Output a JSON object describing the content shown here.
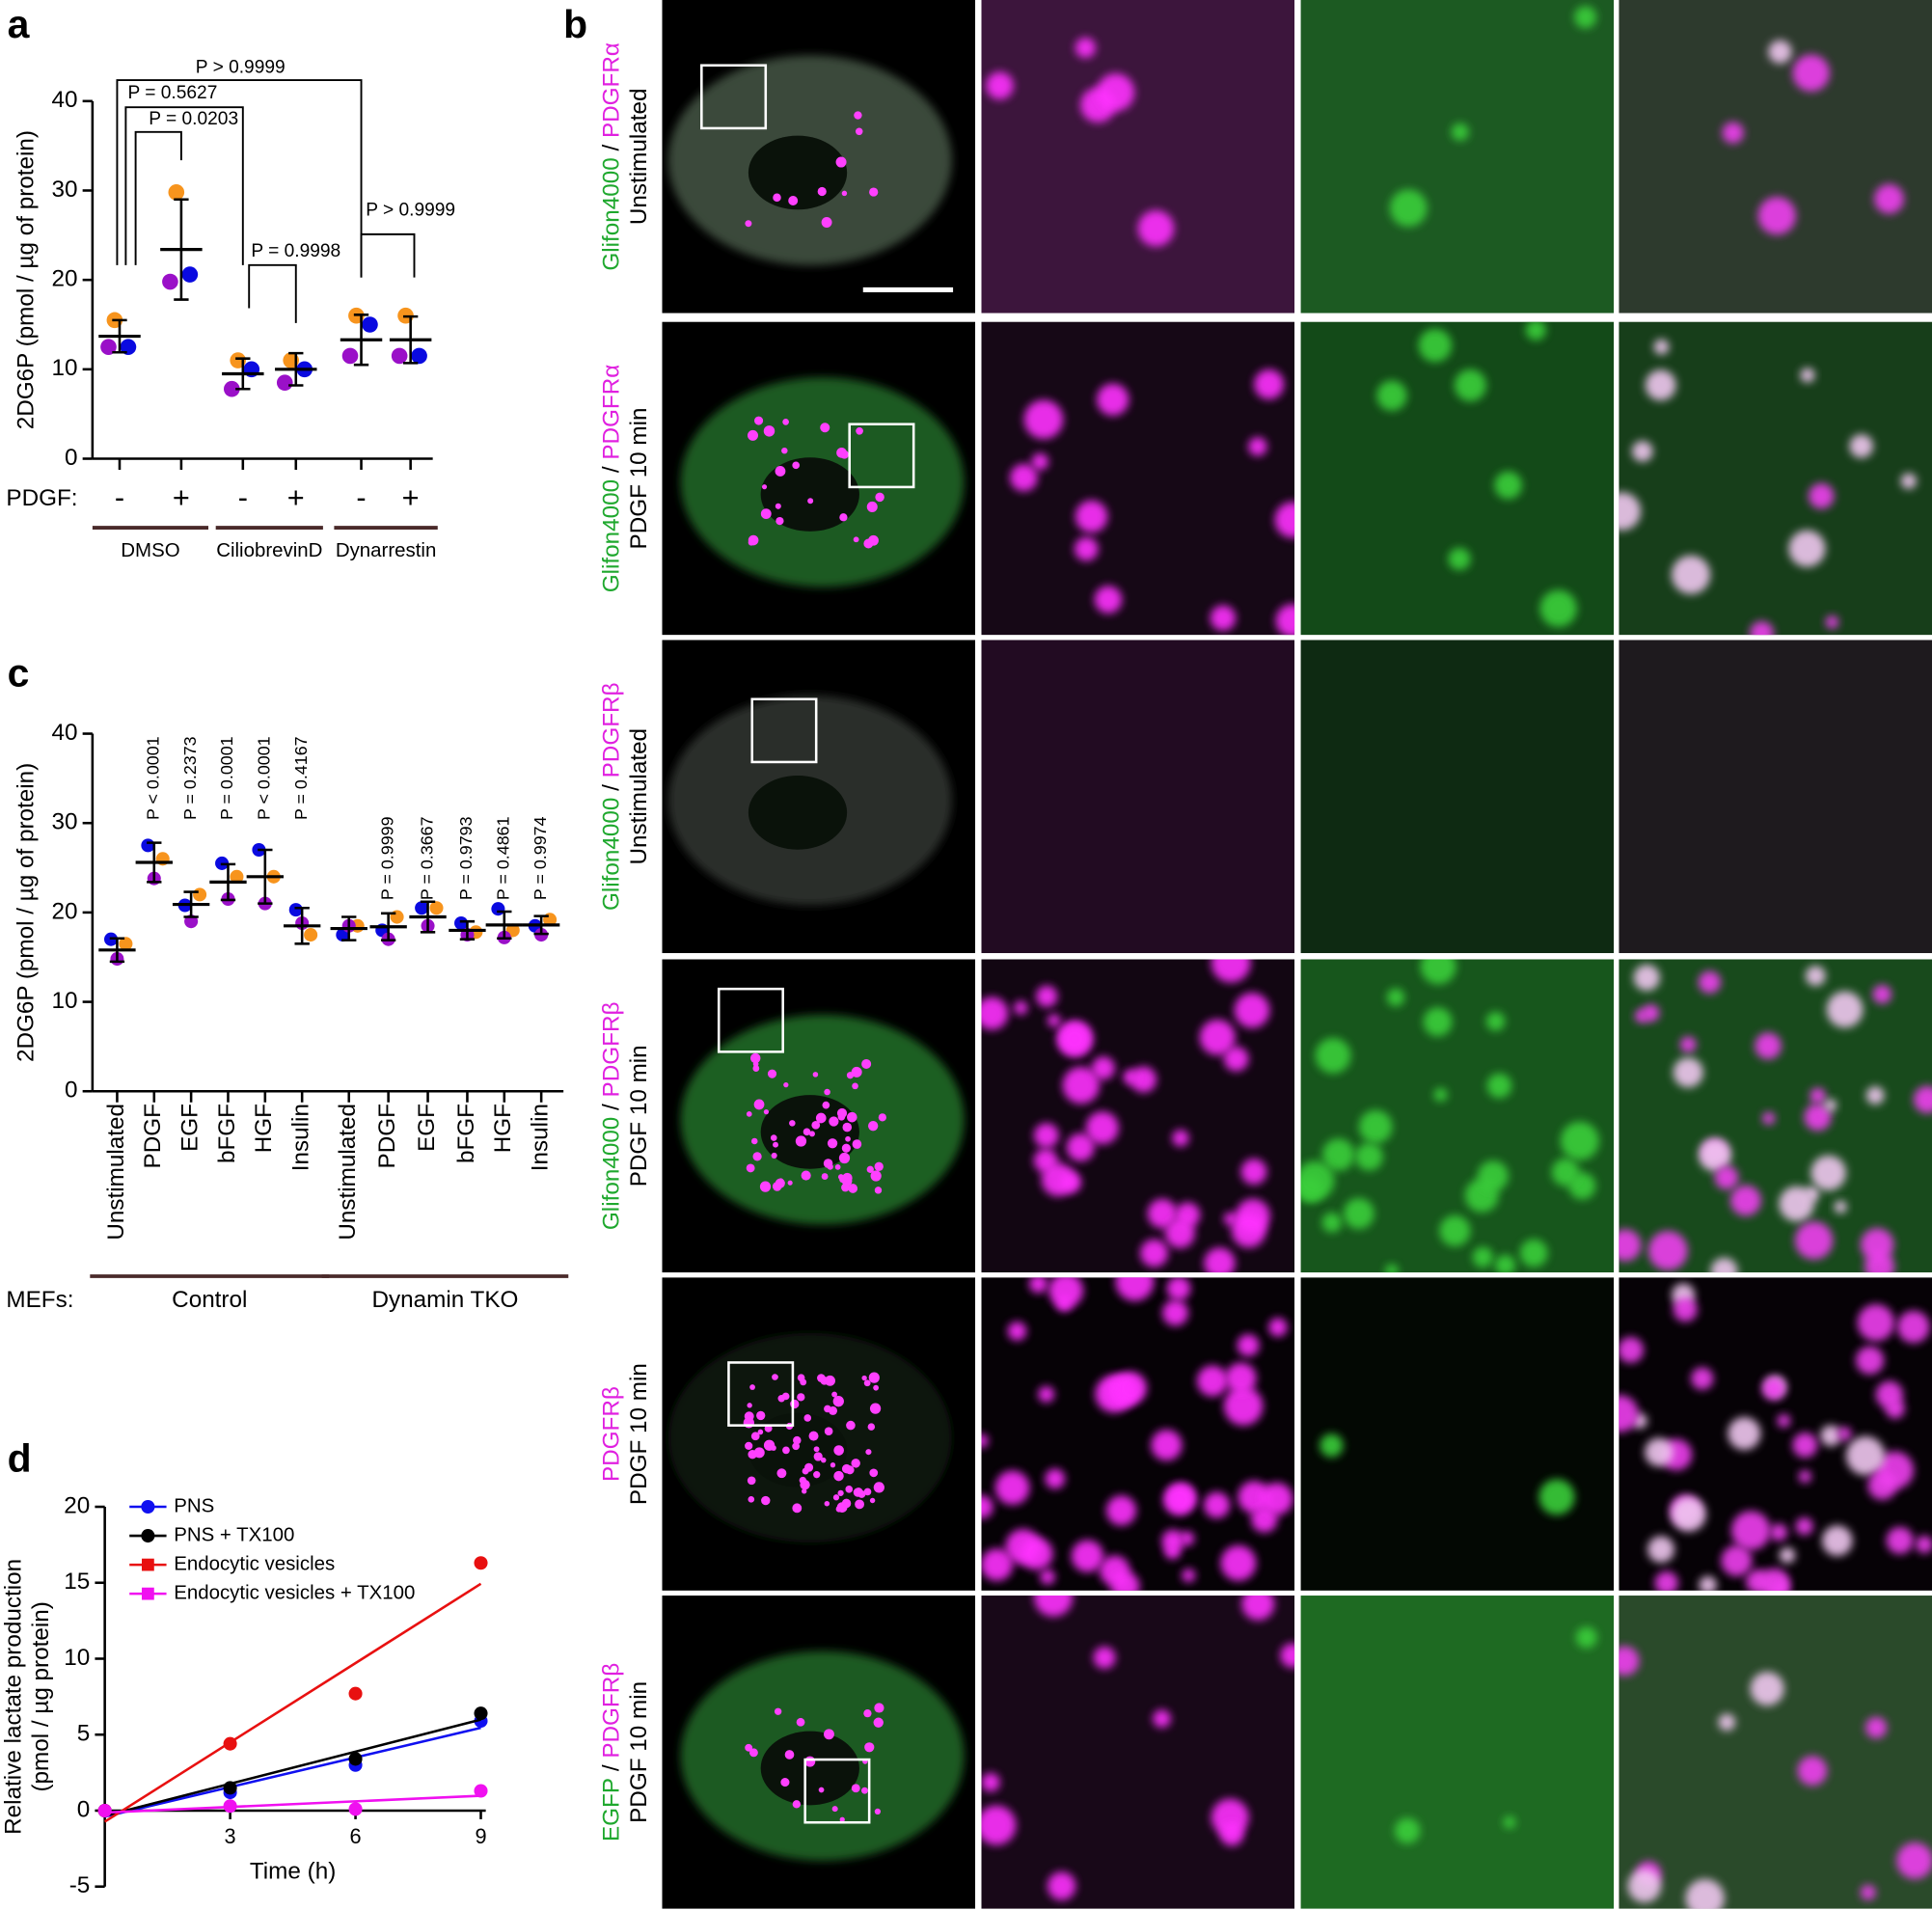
{
  "chart_data": [
    {
      "type": "dotplot",
      "panel_label": "a",
      "y_label": "2DG6P (pmol / µg of protein)",
      "category_title": "PDGF:",
      "ylim": [
        0,
        40
      ],
      "yticks": [
        0,
        10,
        20,
        30,
        40
      ],
      "replicate_colors": [
        "#f7941d",
        "#0a0ae0",
        "#9a10c8"
      ],
      "groups": [
        {
          "name": "DMSO",
          "categories": [
            "-",
            "+"
          ],
          "mean": [
            13.7,
            23.4
          ],
          "sd": [
            1.8,
            5.6
          ],
          "replicates": [
            [
              15.5,
              12.5,
              12.5
            ],
            [
              29.8,
              20.6,
              19.8
            ]
          ]
        },
        {
          "name": "CiliobrevinD",
          "categories": [
            "-",
            "+"
          ],
          "mean": [
            9.5,
            10.0
          ],
          "sd": [
            1.7,
            1.8
          ],
          "replicates": [
            [
              11,
              10,
              7.8
            ],
            [
              11,
              10,
              8.5
            ]
          ]
        },
        {
          "name": "Dynarrestin",
          "categories": [
            "-",
            "+"
          ],
          "mean": [
            13.3,
            13.3
          ],
          "sd": [
            2.8,
            2.6
          ],
          "replicates": [
            [
              16,
              15,
              11.5
            ],
            [
              16,
              11.5,
              11.5
            ]
          ]
        }
      ],
      "comparisons": [
        "P = 0.0203",
        "P = 0.5627",
        "P > 0.9999",
        "P = 0.9998",
        "P > 0.9999"
      ]
    },
    {
      "type": "dotplot",
      "panel_label": "c",
      "y_label": "2DG6P (pmol / µg of protein)",
      "category_title": "MEFs:",
      "ylim": [
        0,
        40
      ],
      "yticks": [
        0,
        10,
        20,
        30,
        40
      ],
      "replicate_colors": [
        "#f7941d",
        "#0a0ae0",
        "#9a10c8"
      ],
      "groups": [
        {
          "name": "Control",
          "name_color": "#e8141c",
          "categories": [
            "Unstimulated",
            "PDGF",
            "EGF",
            "bFGF",
            "HGF",
            "Insulin"
          ],
          "mean": [
            15.8,
            25.6,
            20.9,
            23.4,
            24.0,
            18.5
          ],
          "sd": [
            1.3,
            2.2,
            1.4,
            2.0,
            3.0,
            2.0
          ],
          "p_labels": [
            null,
            "P < 0.0001",
            "P = 0.2373",
            "P = 0.0001",
            "P < 0.0001",
            "P = 0.4167"
          ],
          "replicates": [
            [
              16.5,
              17.0,
              14.8
            ],
            [
              26,
              27.5,
              23.8
            ],
            [
              22,
              20.8,
              19
            ],
            [
              24,
              25.5,
              21.5
            ],
            [
              24,
              27,
              21
            ],
            [
              17.5,
              20.3,
              18.8
            ]
          ]
        },
        {
          "name": "Dynamin TKO",
          "name_color": "#1a1adc",
          "categories": [
            "Unstimulated",
            "PDGF",
            "EGF",
            "bFGF",
            "HGF",
            "Insulin"
          ],
          "mean": [
            18.2,
            18.4,
            19.5,
            18.0,
            18.6,
            18.6
          ],
          "sd": [
            1.3,
            1.5,
            1.7,
            1.0,
            1.5,
            1.0
          ],
          "p_labels": [
            null,
            "P = 0.9999",
            "P = 0.3667",
            "P = 0.9793",
            "P = 0.4861",
            "P = 0.9974"
          ],
          "replicates": [
            [
              18.5,
              17.5,
              18.5
            ],
            [
              19.5,
              18,
              17
            ],
            [
              20.5,
              20.5,
              18.5
            ],
            [
              17.8,
              18.8,
              17.5
            ],
            [
              18,
              20.4,
              17.2
            ],
            [
              19.2,
              18.5,
              17.5
            ]
          ]
        }
      ]
    },
    {
      "type": "line",
      "panel_label": "d",
      "x_label": "Time (h)",
      "y_label": [
        "Relative lactate production",
        "(pmol / µg protein)"
      ],
      "x": [
        0,
        3,
        6,
        9
      ],
      "xlim": [
        0,
        9
      ],
      "xticks": [
        3,
        6,
        9
      ],
      "ylim": [
        -5,
        20
      ],
      "yticks": [
        -5,
        0,
        5,
        10,
        15,
        20
      ],
      "fit": "linear",
      "series": [
        {
          "name": "PNS",
          "color": "#1010f0",
          "marker": "circle",
          "values": [
            0,
            1.2,
            3.0,
            5.9
          ]
        },
        {
          "name": "PNS + TX100",
          "color": "#000000",
          "marker": "circle",
          "values": [
            0,
            1.5,
            3.4,
            6.4
          ]
        },
        {
          "name": "Endocytic vesicles",
          "color": "#e81010",
          "marker": "square",
          "values": [
            0,
            4.4,
            7.7,
            16.3
          ]
        },
        {
          "name": "Endocytic vesicles + TX100",
          "color": "#f010f0",
          "marker": "square",
          "values": [
            0,
            0.3,
            0.1,
            1.3
          ]
        }
      ]
    }
  ],
  "microscopy": {
    "panel_label": "b",
    "rows": [
      {
        "stain": [
          {
            "text": "Glifon4000",
            "color": "#1fa82e"
          },
          {
            "text": " / ",
            "color": "#000000"
          },
          {
            "text": "PDGFRα",
            "color": "#e020e0"
          }
        ],
        "condition": "Unstimulated"
      },
      {
        "stain": [
          {
            "text": "Glifon4000",
            "color": "#1fa82e"
          },
          {
            "text": " / ",
            "color": "#000000"
          },
          {
            "text": "PDGFRα",
            "color": "#e020e0"
          }
        ],
        "condition": "PDGF 10 min"
      },
      {
        "stain": [
          {
            "text": "Glifon4000",
            "color": "#1fa82e"
          },
          {
            "text": " / ",
            "color": "#000000"
          },
          {
            "text": "PDGFRβ",
            "color": "#e020e0"
          }
        ],
        "condition": "Unstimulated"
      },
      {
        "stain": [
          {
            "text": "Glifon4000",
            "color": "#1fa82e"
          },
          {
            "text": " / ",
            "color": "#000000"
          },
          {
            "text": "PDGFRβ",
            "color": "#e020e0"
          }
        ],
        "condition": "PDGF 10 min"
      },
      {
        "stain": [
          {
            "text": "PDGFRβ",
            "color": "#e020e0"
          }
        ],
        "condition": "PDGF 10 min"
      },
      {
        "stain": [
          {
            "text": "EGFP",
            "color": "#1fa82e"
          },
          {
            "text": " / ",
            "color": "#000000"
          },
          {
            "text": "PDGFRβ",
            "color": "#e020e0"
          }
        ],
        "condition": "PDGF 10 min"
      }
    ]
  }
}
